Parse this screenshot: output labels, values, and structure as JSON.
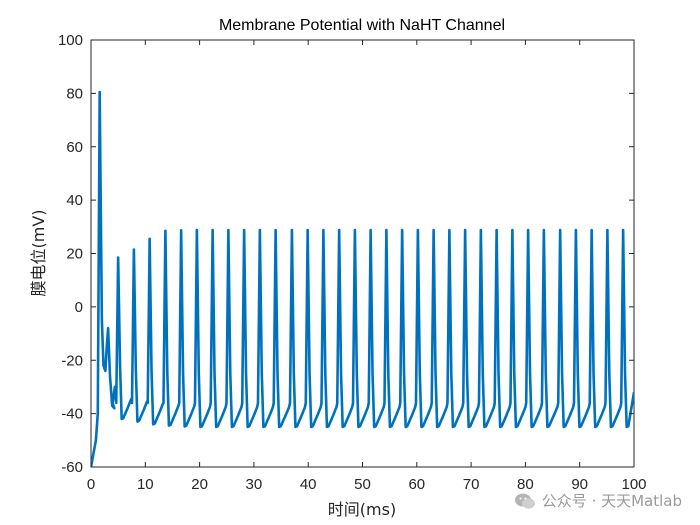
{
  "chart_data": {
    "type": "line",
    "title": "Membrane Potential with NaHT Channel",
    "xlabel": "时间(ms)",
    "ylabel": "膜电位(mV)",
    "xlim": [
      0,
      100
    ],
    "ylim": [
      -60,
      100
    ],
    "xticks": [
      0,
      10,
      20,
      30,
      40,
      50,
      60,
      70,
      80,
      90,
      100
    ],
    "yticks": [
      -60,
      -40,
      -20,
      0,
      20,
      40,
      60,
      80,
      100
    ],
    "grid": false,
    "series": [
      {
        "color": "#0072BD",
        "spike_times": [
          1.6,
          5.0,
          7.9,
          10.8,
          13.7,
          16.6,
          19.5,
          22.4,
          25.3,
          28.2,
          31.1,
          34.0,
          37.0,
          39.9,
          42.8,
          45.7,
          48.6,
          51.5,
          54.4,
          57.3,
          60.2,
          63.1,
          66.0,
          68.9,
          71.8,
          74.7,
          77.6,
          80.5,
          83.4,
          86.4,
          89.3,
          92.2,
          95.1,
          98.0
        ],
        "peak_values": [
          80.5,
          18.5,
          21.5,
          25.5,
          28.5,
          28.7,
          28.8,
          28.8,
          28.8,
          28.8,
          28.8,
          28.8,
          28.8,
          28.8,
          28.8,
          28.8,
          28.8,
          28.8,
          28.8,
          28.8,
          28.8,
          28.8,
          28.8,
          28.8,
          28.8,
          28.8,
          28.8,
          28.8,
          28.8,
          28.8,
          28.8,
          28.8,
          28.8,
          28.8
        ],
        "trough_values": [
          -24,
          -42,
          -43,
          -44,
          -44.5,
          -44.8,
          -45,
          -45,
          -45,
          -45,
          -45,
          -45,
          -45,
          -45,
          -45,
          -45,
          -45,
          -45,
          -45,
          -45,
          -45,
          -45,
          -45,
          -45,
          -45,
          -45,
          -45,
          -45,
          -45,
          -45,
          -45,
          -45,
          -45,
          -45
        ],
        "initial_value": -60,
        "end_value": -32
      }
    ]
  },
  "watermark": {
    "icon": "wechat-icon",
    "text": "公众号 · 天天Matlab"
  }
}
